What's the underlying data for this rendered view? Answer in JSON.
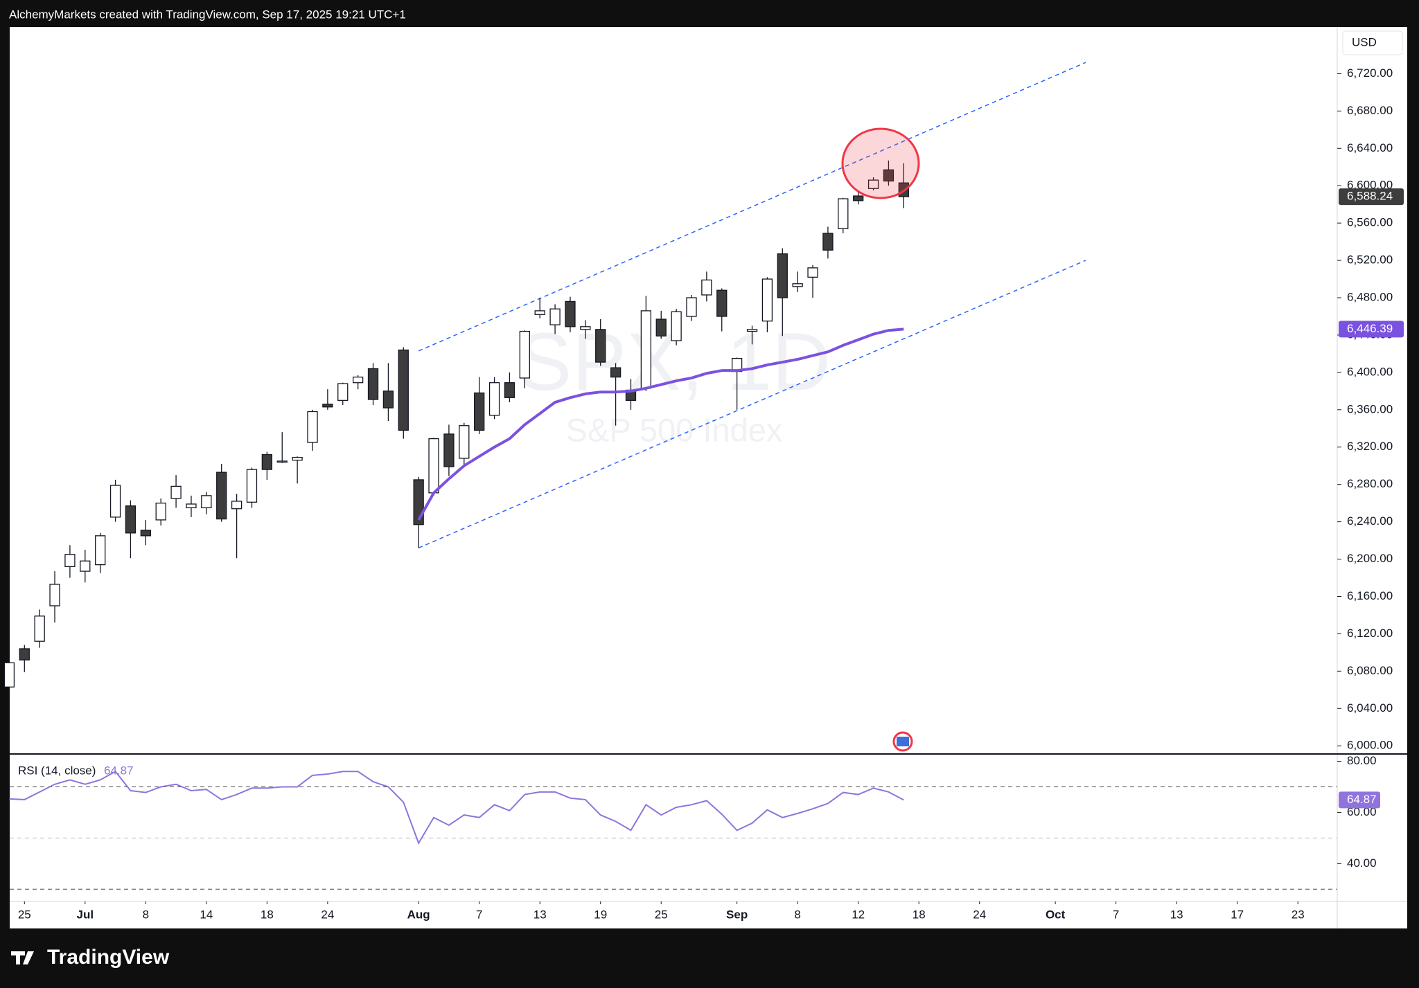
{
  "header": "AlchemyMarkets created with TradingView.com, Sep 17, 2025 19:21 UTC+1",
  "footer": {
    "brand": "TradingView"
  },
  "chart_data": [
    {
      "type": "candlestick",
      "title": "SPX, 1D",
      "subtitle": "S&P 500 Index",
      "currency": "USD",
      "x": [
        "Jun 24",
        "Jun 25",
        "Jun 26",
        "Jun 27",
        "Jun 30",
        "Jul 1",
        "Jul 2",
        "Jul 3",
        "Jul 7",
        "Jul 8",
        "Jul 9",
        "Jul 10",
        "Jul 11",
        "Jul 14",
        "Jul 15",
        "Jul 16",
        "Jul 17",
        "Jul 18",
        "Jul 21",
        "Jul 22",
        "Jul 23",
        "Jul 24",
        "Jul 25",
        "Jul 28",
        "Jul 29",
        "Jul 30",
        "Jul 31",
        "Aug 1",
        "Aug 4",
        "Aug 5",
        "Aug 6",
        "Aug 7",
        "Aug 8",
        "Aug 11",
        "Aug 12",
        "Aug 13",
        "Aug 14",
        "Aug 15",
        "Aug 18",
        "Aug 19",
        "Aug 20",
        "Aug 21",
        "Aug 22",
        "Aug 25",
        "Aug 26",
        "Aug 27",
        "Aug 28",
        "Aug 29",
        "Sep 2",
        "Sep 3",
        "Sep 4",
        "Sep 5",
        "Sep 8",
        "Sep 9",
        "Sep 10",
        "Sep 11",
        "Sep 12",
        "Sep 15",
        "Sep 16",
        "Sep 17"
      ],
      "open": [
        6063,
        6104,
        6112,
        6150,
        6192,
        6187,
        6194,
        6245,
        6257,
        6231,
        6242,
        6265,
        6255,
        6255,
        6293,
        6254,
        6261,
        6312,
        6304,
        6306,
        6325,
        6366,
        6370,
        6389,
        6404,
        6380,
        6424,
        6285,
        6271,
        6334,
        6308,
        6378,
        6354,
        6389,
        6394,
        6462,
        6451,
        6476,
        6446,
        6446,
        6405,
        6381,
        6383,
        6457,
        6434,
        6460,
        6483,
        6488,
        6401,
        6444,
        6455,
        6527,
        6492,
        6502,
        6549,
        6554,
        6589,
        6597,
        6617,
        6603
      ],
      "high": [
        6092,
        6108,
        6146,
        6187,
        6215,
        6210,
        6228,
        6285,
        6263,
        6242,
        6265,
        6290,
        6268,
        6272,
        6302,
        6270,
        6298,
        6315,
        6336,
        6310,
        6360,
        6382,
        6389,
        6397,
        6410,
        6410,
        6427,
        6288,
        6330,
        6344,
        6346,
        6395,
        6395,
        6400,
        6445,
        6480,
        6473,
        6481,
        6456,
        6457,
        6410,
        6393,
        6482,
        6466,
        6468,
        6483,
        6508,
        6490,
        6416,
        6450,
        6502,
        6533,
        6508,
        6515,
        6556,
        6587,
        6593,
        6609,
        6627,
        6624
      ],
      "low": [
        6059,
        6079,
        6105,
        6132,
        6180,
        6175,
        6185,
        6240,
        6201,
        6215,
        6236,
        6255,
        6245,
        6248,
        6240,
        6201,
        6255,
        6285,
        6303,
        6281,
        6316,
        6360,
        6365,
        6382,
        6365,
        6348,
        6329,
        6212,
        6268,
        6289,
        6300,
        6334,
        6350,
        6368,
        6383,
        6458,
        6441,
        6443,
        6436,
        6407,
        6343,
        6360,
        6380,
        6436,
        6429,
        6455,
        6476,
        6444,
        6360,
        6430,
        6443,
        6439,
        6486,
        6480,
        6522,
        6549,
        6580,
        6595,
        6600,
        6576
      ],
      "close": [
        6089,
        6092,
        6139,
        6173,
        6205,
        6198,
        6225,
        6279,
        6228,
        6225,
        6260,
        6278,
        6259,
        6268,
        6243,
        6262,
        6296,
        6296,
        6305,
        6309,
        6358,
        6363,
        6388,
        6395,
        6371,
        6362,
        6338,
        6237,
        6329,
        6299,
        6343,
        6338,
        6389,
        6373,
        6444,
        6466,
        6468,
        6449,
        6449,
        6411,
        6395,
        6370,
        6466,
        6439,
        6465,
        6480,
        6499,
        6460,
        6415,
        6446,
        6500,
        6480,
        6495,
        6512,
        6531,
        6586,
        6584,
        6606,
        6605,
        6588.24
      ],
      "close_label": "6,588.24",
      "up_color": "#ffffff",
      "down_color": "#3d3d3d",
      "edge_color": "#131722",
      "ma": {
        "color": "#7b52e0",
        "last_label": "6,446.39",
        "values": [
          null,
          null,
          null,
          null,
          null,
          null,
          null,
          null,
          null,
          null,
          null,
          null,
          null,
          null,
          null,
          null,
          null,
          null,
          null,
          null,
          null,
          null,
          null,
          null,
          null,
          null,
          null,
          6242,
          6271,
          6286,
          6300,
          6310,
          6320,
          6329,
          6344,
          6356,
          6368,
          6373,
          6377,
          6379,
          6379,
          6380,
          6383,
          6387,
          6391,
          6394,
          6399,
          6402,
          6402,
          6404,
          6408,
          6411,
          6414,
          6418,
          6422,
          6429,
          6435,
          6441,
          6445,
          6446.39
        ]
      },
      "channel": {
        "x": [
          "Aug 1",
          "Oct 3"
        ],
        "upper": [
          6423,
          6732
        ],
        "lower": [
          6212,
          6520
        ],
        "color": "#2962ff"
      },
      "ylim": [
        5992,
        6770
      ],
      "yticks": [
        {
          "value": 6000,
          "label": "6,000.00"
        },
        {
          "value": 6040,
          "label": "6,040.00"
        },
        {
          "value": 6080,
          "label": "6,080.00"
        },
        {
          "value": 6120,
          "label": "6,120.00"
        },
        {
          "value": 6160,
          "label": "6,160.00"
        },
        {
          "value": 6200,
          "label": "6,200.00"
        },
        {
          "value": 6240,
          "label": "6,240.00"
        },
        {
          "value": 6280,
          "label": "6,280.00"
        },
        {
          "value": 6320,
          "label": "6,320.00"
        },
        {
          "value": 6360,
          "label": "6,360.00"
        },
        {
          "value": 6400,
          "label": "6,400.00"
        },
        {
          "value": 6440,
          "label": "6,440.00"
        },
        {
          "value": 6480,
          "label": "6,480.00"
        },
        {
          "value": 6520,
          "label": "6,520.00"
        },
        {
          "value": 6560,
          "label": "6,560.00"
        },
        {
          "value": 6600,
          "label": "6,600.00"
        },
        {
          "value": 6640,
          "label": "6,640.00"
        },
        {
          "value": 6680,
          "label": "6,680.00"
        },
        {
          "value": 6720,
          "label": "6,720.00"
        }
      ],
      "xticks": [
        {
          "value": "Jun 25",
          "label": "25"
        },
        {
          "value": "Jul 1",
          "label": "Jul"
        },
        {
          "value": "Jul 8",
          "label": "8"
        },
        {
          "value": "Jul 14",
          "label": "14"
        },
        {
          "value": "Jul 18",
          "label": "18"
        },
        {
          "value": "Jul 24",
          "label": "24"
        },
        {
          "value": "Aug 1",
          "label": "Aug"
        },
        {
          "value": "Aug 7",
          "label": "7"
        },
        {
          "value": "Aug 13",
          "label": "13"
        },
        {
          "value": "Aug 19",
          "label": "19"
        },
        {
          "value": "Aug 25",
          "label": "25"
        },
        {
          "value": "Sep 2",
          "label": "Sep"
        },
        {
          "value": "Sep 8",
          "label": "8"
        },
        {
          "value": "Sep 12",
          "label": "12"
        },
        {
          "value": "Sep 18",
          "label": "18"
        },
        {
          "value": "Sep 24",
          "label": "24"
        },
        {
          "value": "Oct 1",
          "label": "Oct"
        },
        {
          "value": "Oct 7",
          "label": "7"
        },
        {
          "value": "Oct 13",
          "label": "13"
        },
        {
          "value": "Oct 17",
          "label": "17"
        },
        {
          "value": "Oct 23",
          "label": "23"
        }
      ]
    },
    {
      "type": "line",
      "title": "RSI (14, close)",
      "color": "#8f74dd",
      "values": [
        65.3,
        65,
        68,
        71,
        72.7,
        71,
        72.7,
        76,
        68.5,
        67.8,
        70,
        71,
        68.5,
        69,
        65,
        67,
        69.5,
        69.5,
        70,
        70,
        74.5,
        75,
        76,
        76,
        72,
        70,
        64,
        48,
        58,
        55,
        59,
        58,
        63,
        60.7,
        67,
        68,
        68,
        65.6,
        65,
        59,
        56.5,
        53,
        63,
        59,
        62,
        63,
        64.6,
        59.3,
        53,
        55.8,
        61,
        58,
        59.6,
        61.4,
        63.5,
        67.8,
        67,
        69.5,
        68,
        64.87
      ],
      "ylim": [
        25.2,
        82.3
      ],
      "yticks": [
        {
          "value": 40,
          "label": "40.00"
        },
        {
          "value": 60,
          "label": "60.00"
        },
        {
          "value": 80,
          "label": "80.00"
        }
      ],
      "levels": [
        70,
        50,
        30
      ],
      "level_colors": [
        "#444444",
        "#bbbbbb",
        "#444444"
      ]
    }
  ]
}
